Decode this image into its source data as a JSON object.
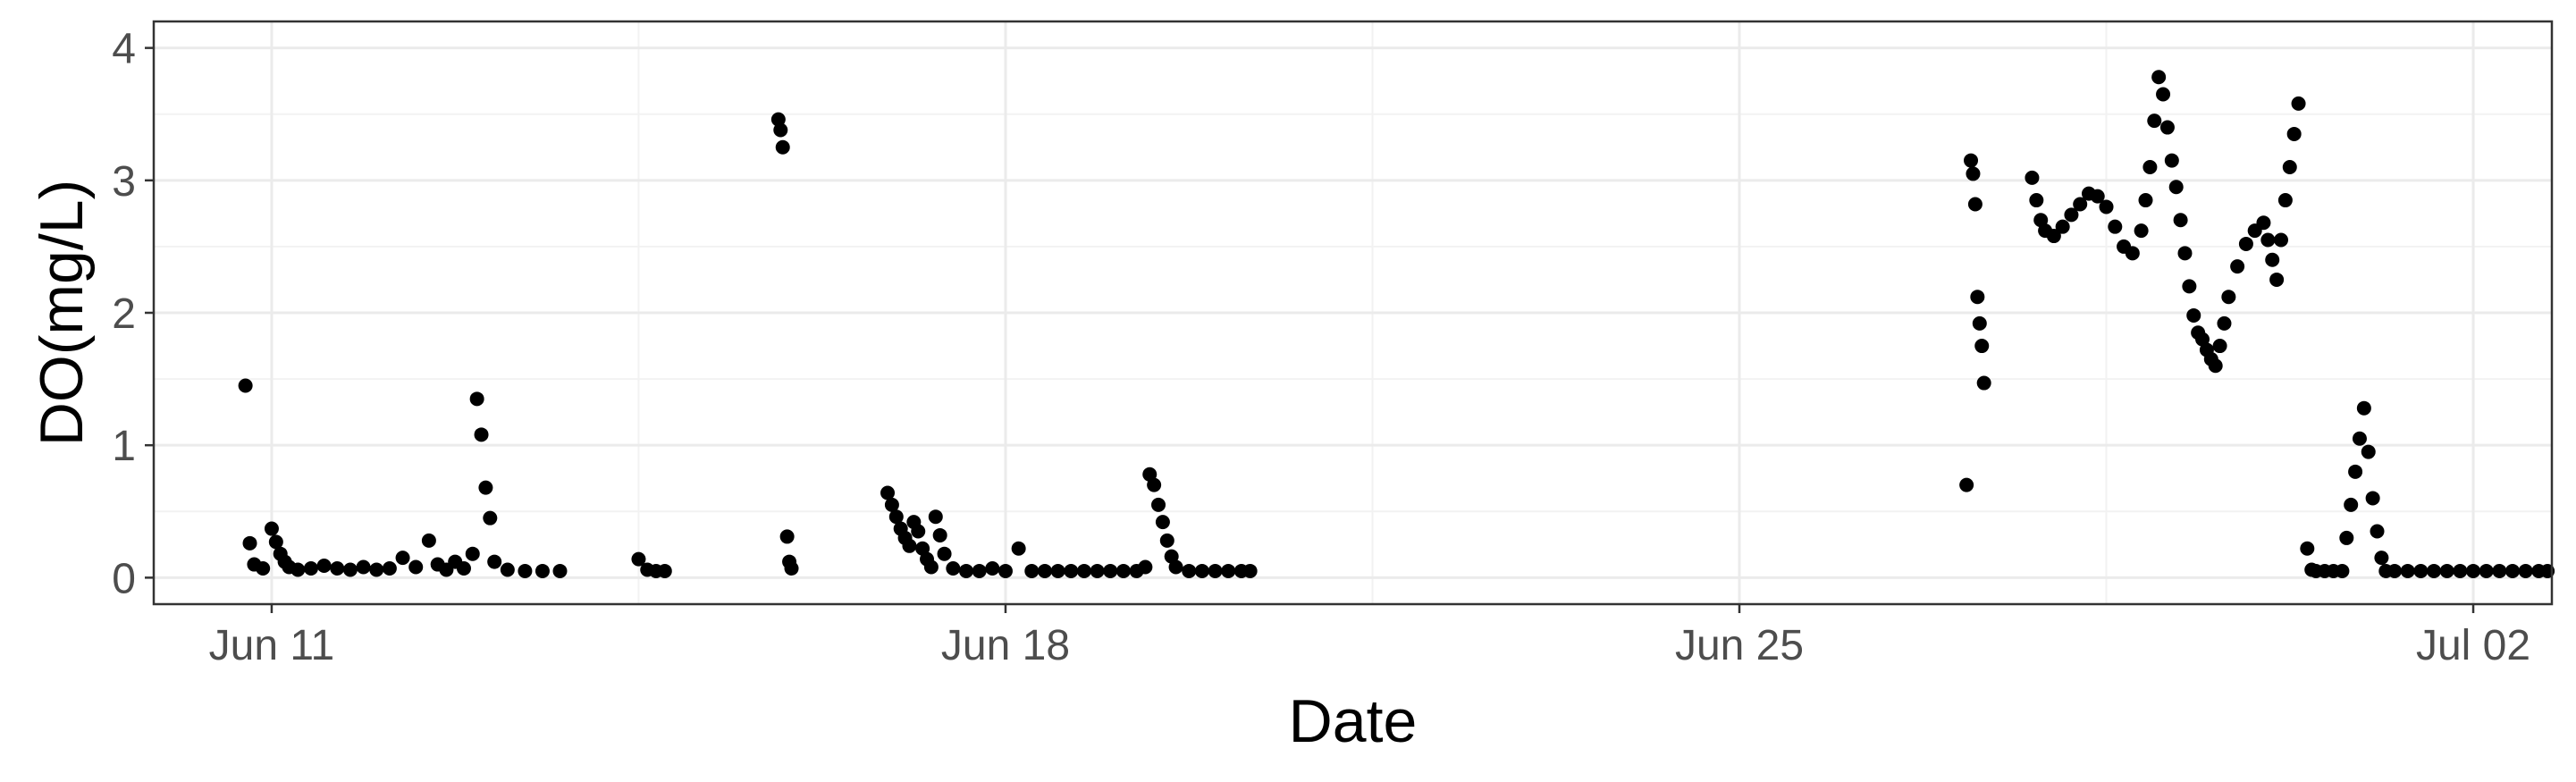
{
  "colors": {
    "point": "#000000",
    "grid_major": "#ebebeb",
    "grid_minor": "#f2f2f2",
    "panel_border": "#333333",
    "tick_text": "#4d4d4d"
  },
  "chart_data": {
    "type": "scatter",
    "title": "",
    "xlabel": "Date",
    "ylabel": "DO(mg/L)",
    "x_ticks": [
      "Jun 11",
      "Jun 18",
      "Jun 25",
      "Jul 02"
    ],
    "y_ticks": [
      "0",
      "1",
      "2",
      "3",
      "4"
    ],
    "xlim": [
      "2023-06-09T21:00",
      "2023-07-02T18:00"
    ],
    "ylim": [
      -0.2,
      4.2
    ],
    "grid": true,
    "legend": "none",
    "series": [
      {
        "points": [
          [
            "2023-06-10T18:00",
            1.45
          ],
          [
            "2023-06-10T19:00",
            0.26
          ],
          [
            "2023-06-10T20:00",
            0.1
          ],
          [
            "2023-06-10T22:00",
            0.07
          ],
          [
            "2023-06-11T00:00",
            0.37
          ],
          [
            "2023-06-11T01:00",
            0.27
          ],
          [
            "2023-06-11T02:00",
            0.18
          ],
          [
            "2023-06-11T03:00",
            0.12
          ],
          [
            "2023-06-11T04:00",
            0.08
          ],
          [
            "2023-06-11T06:00",
            0.06
          ],
          [
            "2023-06-11T09:00",
            0.07
          ],
          [
            "2023-06-11T12:00",
            0.09
          ],
          [
            "2023-06-11T15:00",
            0.07
          ],
          [
            "2023-06-11T18:00",
            0.06
          ],
          [
            "2023-06-11T21:00",
            0.08
          ],
          [
            "2023-06-12T00:00",
            0.06
          ],
          [
            "2023-06-12T03:00",
            0.07
          ],
          [
            "2023-06-12T06:00",
            0.15
          ],
          [
            "2023-06-12T09:00",
            0.08
          ],
          [
            "2023-06-12T12:00",
            0.28
          ],
          [
            "2023-06-12T14:00",
            0.1
          ],
          [
            "2023-06-12T16:00",
            0.06
          ],
          [
            "2023-06-12T18:00",
            0.12
          ],
          [
            "2023-06-12T20:00",
            0.07
          ],
          [
            "2023-06-12T22:00",
            0.18
          ],
          [
            "2023-06-12T23:00",
            1.35
          ],
          [
            "2023-06-13T00:00",
            1.08
          ],
          [
            "2023-06-13T01:00",
            0.68
          ],
          [
            "2023-06-13T02:00",
            0.45
          ],
          [
            "2023-06-13T03:00",
            0.12
          ],
          [
            "2023-06-13T06:00",
            0.06
          ],
          [
            "2023-06-13T10:00",
            0.05
          ],
          [
            "2023-06-13T14:00",
            0.05
          ],
          [
            "2023-06-13T18:00",
            0.05
          ],
          [
            "2023-06-14T12:00",
            0.14
          ],
          [
            "2023-06-14T14:00",
            0.06
          ],
          [
            "2023-06-14T16:00",
            0.05
          ],
          [
            "2023-06-14T18:00",
            0.05
          ],
          [
            "2023-06-15T20:00",
            3.46
          ],
          [
            "2023-06-15T20:30",
            3.38
          ],
          [
            "2023-06-15T21:00",
            3.25
          ],
          [
            "2023-06-15T22:00",
            0.31
          ],
          [
            "2023-06-15T22:30",
            0.12
          ],
          [
            "2023-06-15T23:00",
            0.07
          ],
          [
            "2023-06-16T21:00",
            0.64
          ],
          [
            "2023-06-16T22:00",
            0.55
          ],
          [
            "2023-06-16T23:00",
            0.46
          ],
          [
            "2023-06-17T00:00",
            0.37
          ],
          [
            "2023-06-17T01:00",
            0.3
          ],
          [
            "2023-06-17T02:00",
            0.24
          ],
          [
            "2023-06-17T03:00",
            0.42
          ],
          [
            "2023-06-17T04:00",
            0.35
          ],
          [
            "2023-06-17T05:00",
            0.22
          ],
          [
            "2023-06-17T06:00",
            0.14
          ],
          [
            "2023-06-17T07:00",
            0.08
          ],
          [
            "2023-06-17T08:00",
            0.46
          ],
          [
            "2023-06-17T09:00",
            0.32
          ],
          [
            "2023-06-17T10:00",
            0.18
          ],
          [
            "2023-06-17T12:00",
            0.07
          ],
          [
            "2023-06-17T15:00",
            0.05
          ],
          [
            "2023-06-17T18:00",
            0.05
          ],
          [
            "2023-06-17T21:00",
            0.07
          ],
          [
            "2023-06-18T00:00",
            0.05
          ],
          [
            "2023-06-18T03:00",
            0.22
          ],
          [
            "2023-06-18T06:00",
            0.05
          ],
          [
            "2023-06-18T09:00",
            0.05
          ],
          [
            "2023-06-18T12:00",
            0.05
          ],
          [
            "2023-06-18T15:00",
            0.05
          ],
          [
            "2023-06-18T18:00",
            0.05
          ],
          [
            "2023-06-18T21:00",
            0.05
          ],
          [
            "2023-06-19T00:00",
            0.05
          ],
          [
            "2023-06-19T03:00",
            0.05
          ],
          [
            "2023-06-19T06:00",
            0.05
          ],
          [
            "2023-06-19T08:00",
            0.08
          ],
          [
            "2023-06-19T09:00",
            0.78
          ],
          [
            "2023-06-19T10:00",
            0.7
          ],
          [
            "2023-06-19T11:00",
            0.55
          ],
          [
            "2023-06-19T12:00",
            0.42
          ],
          [
            "2023-06-19T13:00",
            0.28
          ],
          [
            "2023-06-19T14:00",
            0.16
          ],
          [
            "2023-06-19T15:00",
            0.08
          ],
          [
            "2023-06-19T18:00",
            0.05
          ],
          [
            "2023-06-19T21:00",
            0.05
          ],
          [
            "2023-06-20T00:00",
            0.05
          ],
          [
            "2023-06-20T03:00",
            0.05
          ],
          [
            "2023-06-20T06:00",
            0.05
          ],
          [
            "2023-06-20T08:00",
            0.05
          ],
          [
            "2023-06-27T04:00",
            0.7
          ],
          [
            "2023-06-27T05:00",
            3.15
          ],
          [
            "2023-06-27T05:30",
            3.05
          ],
          [
            "2023-06-27T06:00",
            2.82
          ],
          [
            "2023-06-27T06:30",
            2.12
          ],
          [
            "2023-06-27T07:00",
            1.92
          ],
          [
            "2023-06-27T07:30",
            1.75
          ],
          [
            "2023-06-27T08:00",
            1.47
          ],
          [
            "2023-06-27T19:00",
            3.02
          ],
          [
            "2023-06-27T20:00",
            2.85
          ],
          [
            "2023-06-27T21:00",
            2.7
          ],
          [
            "2023-06-27T22:00",
            2.62
          ],
          [
            "2023-06-28T00:00",
            2.58
          ],
          [
            "2023-06-28T02:00",
            2.65
          ],
          [
            "2023-06-28T04:00",
            2.74
          ],
          [
            "2023-06-28T06:00",
            2.82
          ],
          [
            "2023-06-28T08:00",
            2.9
          ],
          [
            "2023-06-28T10:00",
            2.88
          ],
          [
            "2023-06-28T12:00",
            2.8
          ],
          [
            "2023-06-28T14:00",
            2.65
          ],
          [
            "2023-06-28T16:00",
            2.5
          ],
          [
            "2023-06-28T18:00",
            2.45
          ],
          [
            "2023-06-28T20:00",
            2.62
          ],
          [
            "2023-06-28T21:00",
            2.85
          ],
          [
            "2023-06-28T22:00",
            3.1
          ],
          [
            "2023-06-28T23:00",
            3.45
          ],
          [
            "2023-06-29T00:00",
            3.78
          ],
          [
            "2023-06-29T01:00",
            3.65
          ],
          [
            "2023-06-29T02:00",
            3.4
          ],
          [
            "2023-06-29T03:00",
            3.15
          ],
          [
            "2023-06-29T04:00",
            2.95
          ],
          [
            "2023-06-29T05:00",
            2.7
          ],
          [
            "2023-06-29T06:00",
            2.45
          ],
          [
            "2023-06-29T07:00",
            2.2
          ],
          [
            "2023-06-29T08:00",
            1.98
          ],
          [
            "2023-06-29T09:00",
            1.85
          ],
          [
            "2023-06-29T10:00",
            1.8
          ],
          [
            "2023-06-29T11:00",
            1.72
          ],
          [
            "2023-06-29T12:00",
            1.65
          ],
          [
            "2023-06-29T13:00",
            1.6
          ],
          [
            "2023-06-29T14:00",
            1.75
          ],
          [
            "2023-06-29T15:00",
            1.92
          ],
          [
            "2023-06-29T16:00",
            2.12
          ],
          [
            "2023-06-29T18:00",
            2.35
          ],
          [
            "2023-06-29T20:00",
            2.52
          ],
          [
            "2023-06-29T22:00",
            2.62
          ],
          [
            "2023-06-30T00:00",
            2.68
          ],
          [
            "2023-06-30T01:00",
            2.55
          ],
          [
            "2023-06-30T02:00",
            2.4
          ],
          [
            "2023-06-30T03:00",
            2.25
          ],
          [
            "2023-06-30T04:00",
            2.55
          ],
          [
            "2023-06-30T05:00",
            2.85
          ],
          [
            "2023-06-30T06:00",
            3.1
          ],
          [
            "2023-06-30T07:00",
            3.35
          ],
          [
            "2023-06-30T08:00",
            3.58
          ],
          [
            "2023-06-30T10:00",
            0.22
          ],
          [
            "2023-06-30T11:00",
            0.06
          ],
          [
            "2023-06-30T12:00",
            0.05
          ],
          [
            "2023-06-30T14:00",
            0.05
          ],
          [
            "2023-06-30T16:00",
            0.05
          ],
          [
            "2023-06-30T18:00",
            0.05
          ],
          [
            "2023-06-30T19:00",
            0.3
          ],
          [
            "2023-06-30T20:00",
            0.55
          ],
          [
            "2023-06-30T21:00",
            0.8
          ],
          [
            "2023-06-30T22:00",
            1.05
          ],
          [
            "2023-06-30T23:00",
            1.28
          ],
          [
            "2023-07-01T00:00",
            0.95
          ],
          [
            "2023-07-01T01:00",
            0.6
          ],
          [
            "2023-07-01T02:00",
            0.35
          ],
          [
            "2023-07-01T03:00",
            0.15
          ],
          [
            "2023-07-01T04:00",
            0.05
          ],
          [
            "2023-07-01T06:00",
            0.05
          ],
          [
            "2023-07-01T09:00",
            0.05
          ],
          [
            "2023-07-01T12:00",
            0.05
          ],
          [
            "2023-07-01T15:00",
            0.05
          ],
          [
            "2023-07-01T18:00",
            0.05
          ],
          [
            "2023-07-01T21:00",
            0.05
          ],
          [
            "2023-07-02T00:00",
            0.05
          ],
          [
            "2023-07-02T03:00",
            0.05
          ],
          [
            "2023-07-02T06:00",
            0.05
          ],
          [
            "2023-07-02T09:00",
            0.05
          ],
          [
            "2023-07-02T12:00",
            0.05
          ],
          [
            "2023-07-02T15:00",
            0.05
          ],
          [
            "2023-07-02T17:00",
            0.05
          ]
        ]
      }
    ]
  }
}
